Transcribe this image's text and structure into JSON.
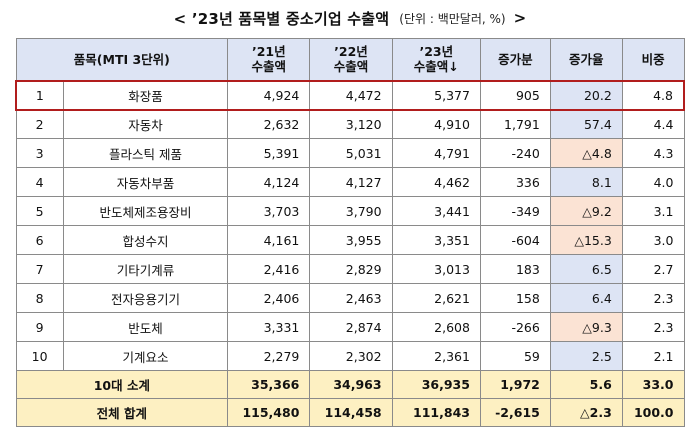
{
  "title": "< ’23년 품목별 중소기업 수출액",
  "unit": "(단위 : 백만달러, %)",
  "title_end": ">",
  "headers": {
    "item": "품목(MTI 3단위)",
    "y21": "’21년\n수출액",
    "y22": "’22년\n수출액",
    "y23": "’23년\n수출액↓",
    "increase": "증가분",
    "growth": "증가율",
    "share": "비중"
  },
  "rows": [
    {
      "rank": "1",
      "name": "화장품",
      "y21": "4,924",
      "y22": "4,472",
      "y23": "5,377",
      "inc": "905",
      "rate": "20.2",
      "share": "4.8",
      "neg": false
    },
    {
      "rank": "2",
      "name": "자동차",
      "y21": "2,632",
      "y22": "3,120",
      "y23": "4,910",
      "inc": "1,791",
      "rate": "57.4",
      "share": "4.4",
      "neg": false
    },
    {
      "rank": "3",
      "name": "플라스틱 제품",
      "y21": "5,391",
      "y22": "5,031",
      "y23": "4,791",
      "inc": "-240",
      "rate": "△4.8",
      "share": "4.3",
      "neg": true
    },
    {
      "rank": "4",
      "name": "자동차부품",
      "y21": "4,124",
      "y22": "4,127",
      "y23": "4,462",
      "inc": "336",
      "rate": "8.1",
      "share": "4.0",
      "neg": false
    },
    {
      "rank": "5",
      "name": "반도체제조용장비",
      "y21": "3,703",
      "y22": "3,790",
      "y23": "3,441",
      "inc": "-349",
      "rate": "△9.2",
      "share": "3.1",
      "neg": true
    },
    {
      "rank": "6",
      "name": "합성수지",
      "y21": "4,161",
      "y22": "3,955",
      "y23": "3,351",
      "inc": "-604",
      "rate": "△15.3",
      "share": "3.0",
      "neg": true
    },
    {
      "rank": "7",
      "name": "기타기계류",
      "y21": "2,416",
      "y22": "2,829",
      "y23": "3,013",
      "inc": "183",
      "rate": "6.5",
      "share": "2.7",
      "neg": false
    },
    {
      "rank": "8",
      "name": "전자응용기기",
      "y21": "2,406",
      "y22": "2,463",
      "y23": "2,621",
      "inc": "158",
      "rate": "6.4",
      "share": "2.3",
      "neg": false
    },
    {
      "rank": "9",
      "name": "반도체",
      "y21": "3,331",
      "y22": "2,874",
      "y23": "2,608",
      "inc": "-266",
      "rate": "△9.3",
      "share": "2.3",
      "neg": true
    },
    {
      "rank": "10",
      "name": "기계요소",
      "y21": "2,279",
      "y22": "2,302",
      "y23": "2,361",
      "inc": "59",
      "rate": "2.5",
      "share": "2.1",
      "neg": false
    }
  ],
  "totals": [
    {
      "label": "10대 소계",
      "y21": "35,366",
      "y22": "34,963",
      "y23": "36,935",
      "inc": "1,972",
      "rate": "5.6",
      "share": "33.0"
    },
    {
      "label": "전체 합계",
      "y21": "115,480",
      "y22": "114,458",
      "y23": "111,843",
      "inc": "-2,615",
      "rate": "△2.3",
      "share": "100.0"
    }
  ]
}
